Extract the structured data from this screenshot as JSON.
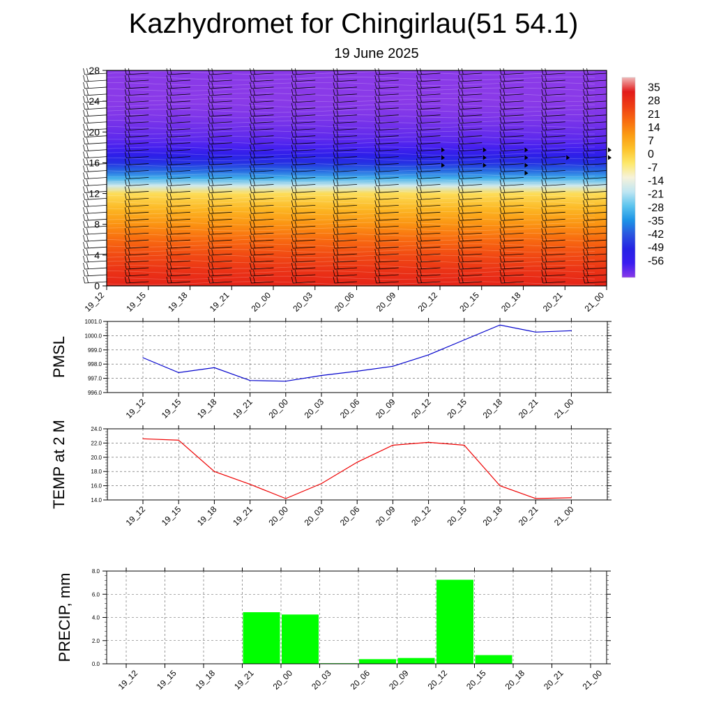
{
  "header": {
    "title": "Kazhydromet for Chingirlau(51 54.1)",
    "subtitle": "19 June 2025"
  },
  "chart_data": [
    {
      "type": "heatmap",
      "name": "vertical-cross-section",
      "x_tick_labels": [
        "19_12",
        "19_15",
        "19_18",
        "19_21",
        "20_00",
        "20_03",
        "20_06",
        "20_09",
        "20_12",
        "20_15",
        "20_18",
        "20_21",
        "21_00"
      ],
      "y_ticks": [
        0,
        4,
        8,
        12,
        16,
        20,
        24,
        28
      ],
      "ylim": [
        0,
        28
      ],
      "temperature_profile": {
        "levels": [
          0,
          2,
          4,
          6,
          8,
          10,
          12,
          13,
          14,
          15,
          16,
          17,
          18,
          19,
          20,
          22,
          24,
          26,
          28
        ],
        "values": [
          33,
          30,
          26,
          21,
          15,
          9,
          2,
          -12,
          -24,
          -33,
          -40,
          -45,
          -50,
          -52,
          -53,
          -55,
          -57,
          -58,
          -59
        ]
      },
      "colorbar": {
        "labels": [
          "35",
          "28",
          "21",
          "14",
          "7",
          "0",
          "-7",
          "-14",
          "-21",
          "-28",
          "-35",
          "-42",
          "-49",
          "-56"
        ],
        "colors": [
          "#f0b8b8",
          "#e21a1a",
          "#ee3d14",
          "#f86a10",
          "#fb9a12",
          "#fdc22a",
          "#fde86a",
          "#f6f2da",
          "#bfe6f2",
          "#5cc4ee",
          "#1c93e6",
          "#2a54df",
          "#2522e4",
          "#3a1cf0",
          "#8a3ae8"
        ]
      },
      "barb_rows": 31,
      "barb_columns": 13,
      "pennant_barbs": [
        {
          "column": 8,
          "levels": [
            16,
            17,
            18
          ]
        },
        {
          "column": 9,
          "levels": [
            16,
            17,
            18
          ]
        },
        {
          "column": 10,
          "levels": [
            15,
            16,
            17,
            18
          ]
        },
        {
          "column": 11,
          "levels": [
            17
          ]
        },
        {
          "column": 12,
          "levels": [
            17,
            18
          ]
        }
      ]
    },
    {
      "type": "line",
      "name": "pmsl",
      "ylabel": "PMSL",
      "ylim": [
        996.0,
        1001.0
      ],
      "y_ticks": [
        "996.0",
        "997.0",
        "998.0",
        "999.0",
        "1000.0",
        "1001.0"
      ],
      "categories": [
        "19_12",
        "19_15",
        "19_18",
        "19_21",
        "20_00",
        "20_03",
        "20_06",
        "20_09",
        "20_12",
        "20_15",
        "20_18",
        "20_21",
        "21_00"
      ],
      "values": [
        998.45,
        997.4,
        997.75,
        996.85,
        996.8,
        997.2,
        997.5,
        997.85,
        998.65,
        999.7,
        1000.75,
        1000.25,
        1000.35
      ],
      "color": "#0000cc"
    },
    {
      "type": "line",
      "name": "temp-2m",
      "ylabel": "TEMP at 2 M",
      "ylim": [
        14.0,
        24.0
      ],
      "y_ticks": [
        "14.0",
        "16.0",
        "18.0",
        "20.0",
        "22.0",
        "24.0"
      ],
      "categories": [
        "19_12",
        "19_15",
        "19_18",
        "19_21",
        "20_00",
        "20_03",
        "20_06",
        "20_09",
        "20_12",
        "20_15",
        "20_18",
        "20_21",
        "21_00"
      ],
      "values": [
        22.6,
        22.4,
        18.0,
        16.2,
        14.2,
        16.3,
        19.3,
        21.7,
        22.1,
        21.7,
        16.0,
        14.2,
        14.3
      ],
      "color": "#ee0000"
    },
    {
      "type": "bar",
      "name": "precip",
      "ylabel": "PRECIP, mm",
      "ylim": [
        0.0,
        8.0
      ],
      "y_ticks": [
        "0.0",
        "2.0",
        "4.0",
        "6.0",
        "8.0"
      ],
      "categories": [
        "19_12",
        "19_15",
        "19_18",
        "19_21",
        "20_00",
        "20_03",
        "20_06",
        "20_09",
        "20_12",
        "20_15",
        "20_18",
        "20_21",
        "21_00"
      ],
      "values": [
        0,
        0,
        0,
        4.45,
        4.25,
        0.05,
        0.4,
        0.5,
        7.25,
        0.75,
        0,
        0,
        0
      ],
      "color": "#00ff00"
    }
  ]
}
